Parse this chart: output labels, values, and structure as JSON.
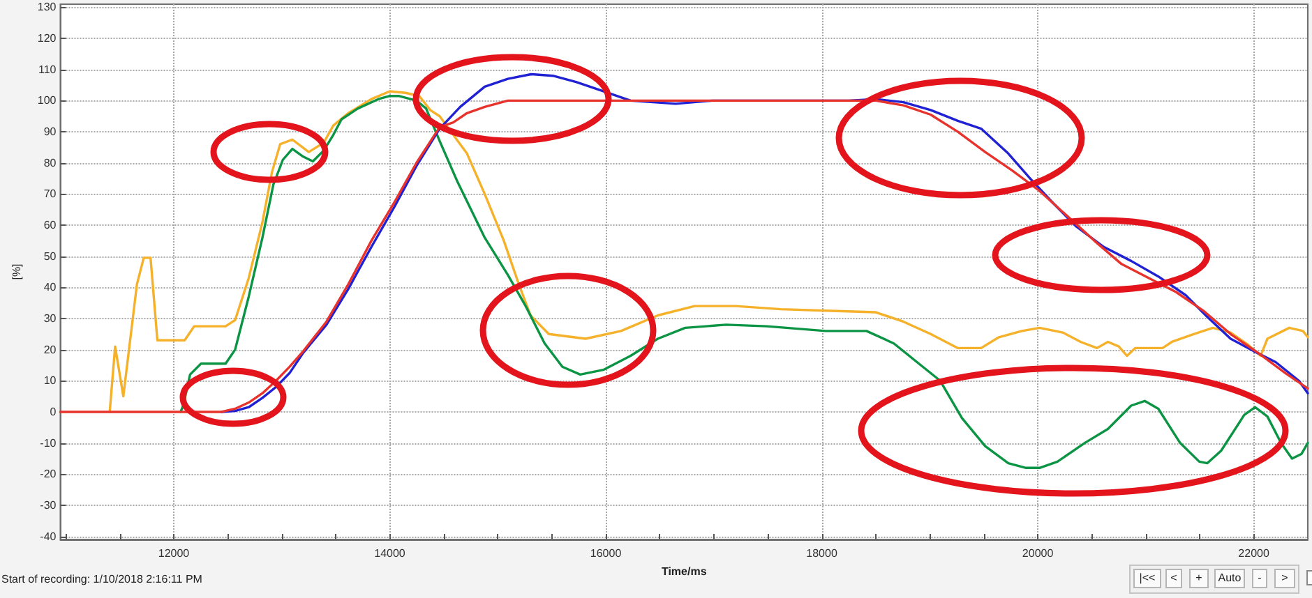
{
  "chart_data": {
    "type": "line",
    "xlabel": "Time/ms",
    "ylabel": "[%]",
    "xlim": [
      10950,
      22500
    ],
    "ylim": [
      -41,
      131
    ],
    "xticks": [
      {
        "value": 11000,
        "label": null
      },
      {
        "value": 11500,
        "label": null
      },
      12000,
      {
        "value": 12500,
        "label": null
      },
      {
        "value": 13000,
        "label": null
      },
      {
        "value": 13500,
        "label": null
      },
      14000,
      {
        "value": 14500,
        "label": null
      },
      {
        "value": 15000,
        "label": null
      },
      {
        "value": 15500,
        "label": null
      },
      16000,
      {
        "value": 16500,
        "label": null
      },
      {
        "value": 17000,
        "label": null
      },
      {
        "value": 17500,
        "label": null
      },
      18000,
      {
        "value": 18500,
        "label": null
      },
      {
        "value": 19000,
        "label": null
      },
      {
        "value": 19500,
        "label": null
      },
      20000,
      {
        "value": 20500,
        "label": null
      },
      {
        "value": 21000,
        "label": null
      },
      {
        "value": 21500,
        "label": null
      },
      22000
    ],
    "yticks": [
      -40,
      -30,
      -20,
      -10,
      0,
      10,
      20,
      30,
      40,
      50,
      60,
      70,
      80,
      90,
      100,
      110,
      120,
      130
    ],
    "grid": true,
    "annotations": [
      "Start of recording: 1/10/2018 2:16:11 PM",
      "|<<",
      "<",
      "+",
      "Auto",
      "-",
      ">"
    ],
    "series": [
      {
        "color": "#f5b12a",
        "x": [
          11407,
          11457,
          11533,
          11659,
          11722,
          11785,
          11848,
          12101,
          12189,
          12480,
          12568,
          12694,
          12821,
          12909,
          12985,
          13098,
          13250,
          13389,
          13477,
          13616,
          13830,
          14000,
          14146,
          14273,
          14374,
          14462,
          14588,
          14715,
          14879,
          15056,
          15195,
          15303,
          15472,
          15813,
          16141,
          16482,
          16823,
          17202,
          17619,
          18035,
          18500,
          18755,
          19008,
          19260,
          19475,
          19640,
          19853,
          20017,
          20232,
          20396,
          20548,
          20649,
          20750,
          20826,
          20902,
          21155,
          21242,
          21444,
          21621,
          21785,
          21949,
          22063,
          22126,
          22328,
          22455,
          22500
        ],
        "values": [
          0,
          21,
          5,
          41,
          49.5,
          49.5,
          23,
          23,
          27.5,
          27.5,
          29.5,
          43,
          61,
          77,
          86,
          87.5,
          83.5,
          86.5,
          92,
          96,
          100.5,
          103,
          102.5,
          101.5,
          97,
          95,
          89,
          83,
          70,
          55,
          41,
          31,
          25,
          23.5,
          26,
          31,
          34,
          34,
          33,
          32.5,
          32,
          29,
          25,
          20.5,
          20.5,
          24,
          26,
          27,
          25.5,
          22.5,
          20.5,
          22.5,
          21,
          18,
          20.5,
          20.5,
          22.5,
          25,
          27,
          25.5,
          21.5,
          18,
          23.5,
          27,
          26,
          24
        ]
      },
      {
        "color": "#0b9444",
        "x": [
          12063,
          12088,
          12151,
          12252,
          12480,
          12568,
          12694,
          12821,
          12922,
          13010,
          13098,
          13199,
          13288,
          13389,
          13477,
          13553,
          13705,
          13894,
          14000,
          14083,
          14247,
          14336,
          14462,
          14626,
          14879,
          15093,
          15258,
          15434,
          15598,
          15763,
          15977,
          16230,
          16482,
          16735,
          17114,
          17492,
          18035,
          18414,
          18667,
          18881,
          19096,
          19298,
          19513,
          19727,
          19891,
          20017,
          20182,
          20434,
          20649,
          20864,
          20990,
          21116,
          21318,
          21495,
          21570,
          21697,
          21911,
          22013,
          22126,
          22252,
          22354,
          22442,
          22500
        ],
        "values": [
          0,
          2,
          12,
          15.5,
          15.5,
          20,
          37,
          56,
          73,
          81,
          84.5,
          82,
          80.5,
          84,
          89,
          94,
          97.5,
          100.5,
          101.5,
          101.5,
          100,
          97.5,
          87,
          74,
          56,
          44,
          34,
          22,
          14.5,
          12,
          13.5,
          18,
          23.5,
          27,
          28,
          27.5,
          26,
          26,
          22,
          16,
          10,
          -2,
          -11,
          -16.5,
          -18,
          -18,
          -16,
          -10,
          -5.5,
          2,
          3.5,
          1,
          -10,
          -16,
          -16.5,
          -12.5,
          -1,
          1.5,
          -1.5,
          -10,
          -15,
          -13.5,
          -10
        ]
      },
      {
        "color": "#2121d4",
        "x": [
          12442,
          12568,
          12694,
          12821,
          12947,
          13073,
          13199,
          13414,
          13616,
          13830,
          14045,
          14247,
          14462,
          14652,
          14879,
          15093,
          15308,
          15510,
          15725,
          15939,
          16103,
          16230,
          16647,
          16987,
          18250,
          18500,
          18755,
          19008,
          19260,
          19475,
          19727,
          19929,
          20144,
          20358,
          20611,
          20864,
          21116,
          21369,
          21570,
          21785,
          22000,
          22202,
          22417,
          22500
        ],
        "values": [
          0,
          0.3,
          1.5,
          4.5,
          8,
          12.5,
          19,
          28,
          39.5,
          53,
          66,
          79,
          91,
          98,
          104.5,
          107,
          108.5,
          108,
          106,
          103.5,
          101.5,
          100,
          99,
          100,
          100,
          100.5,
          99.5,
          97,
          93.5,
          91,
          83,
          75,
          67,
          59.5,
          53,
          48.5,
          43.5,
          37.5,
          30.5,
          23.5,
          19.5,
          16,
          10,
          6
        ]
      },
      {
        "color": "#e8322c",
        "x": [
          10950,
          12442,
          12568,
          12694,
          12821,
          12947,
          13073,
          13199,
          13414,
          13616,
          13830,
          14045,
          14247,
          14462,
          14588,
          14715,
          14879,
          15093,
          18500,
          18755,
          19008,
          19260,
          19513,
          19765,
          20017,
          20270,
          20523,
          20775,
          21028,
          21280,
          21533,
          21785,
          22038,
          22290,
          22500
        ],
        "values": [
          0,
          0,
          1,
          3,
          6,
          10,
          14.5,
          19.5,
          29,
          41,
          55,
          67.5,
          80,
          91.5,
          93,
          96,
          98,
          100,
          100,
          98.5,
          95.5,
          90,
          83.5,
          77.5,
          71,
          63,
          55,
          47.5,
          43,
          38.5,
          32.5,
          25,
          19,
          12.5,
          7.5
        ]
      }
    ]
  }
}
